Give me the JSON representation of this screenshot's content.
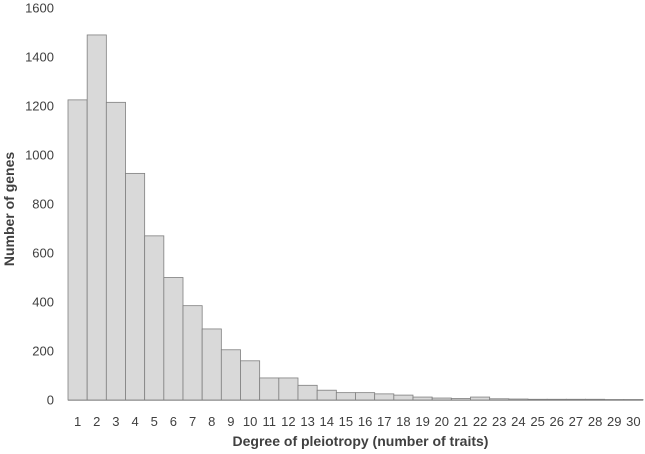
{
  "chart_data": {
    "type": "bar",
    "title": "",
    "xlabel": "Degree of pleiotropy (number of traits)",
    "ylabel": "Number of genes",
    "categories": [
      "1",
      "2",
      "3",
      "4",
      "5",
      "6",
      "7",
      "8",
      "9",
      "10",
      "11",
      "12",
      "13",
      "14",
      "15",
      "16",
      "17",
      "18",
      "19",
      "20",
      "21",
      "22",
      "23",
      "24",
      "25",
      "26",
      "27",
      "28",
      "29",
      "30"
    ],
    "values": [
      1225,
      1490,
      1215,
      925,
      670,
      500,
      385,
      290,
      205,
      160,
      90,
      90,
      60,
      40,
      30,
      30,
      25,
      20,
      12,
      8,
      6,
      12,
      5,
      4,
      3,
      3,
      3,
      3,
      2,
      2
    ],
    "ylim": [
      0,
      1600
    ],
    "yticks": [
      "0",
      "200",
      "400",
      "600",
      "800",
      "1000",
      "1200",
      "1400",
      "1600"
    ],
    "grid": false,
    "colors": {
      "bar_fill": "#d9d9d9",
      "bar_stroke": "#7f7f7f",
      "axis": "#a6a6a6",
      "text": "#404040"
    }
  }
}
